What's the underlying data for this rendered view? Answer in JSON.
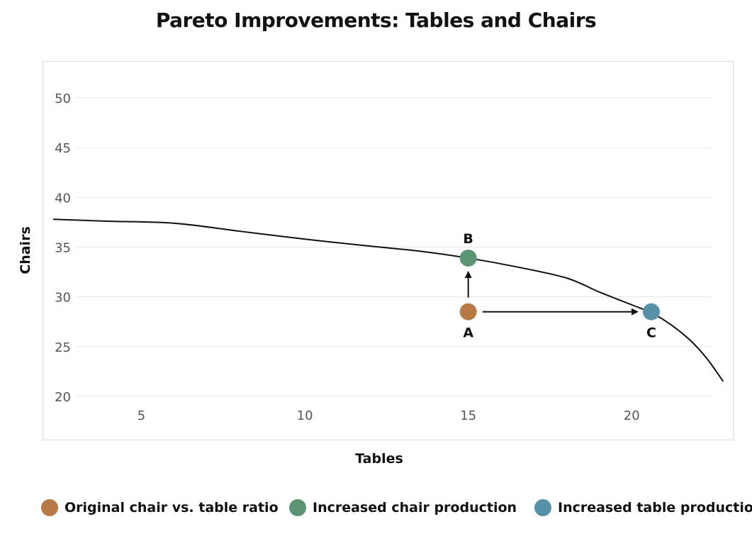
{
  "chart_data": {
    "type": "line",
    "title": "Pareto Improvements: Tables and Chairs",
    "xlabel": "Tables",
    "ylabel": "Chairs",
    "xlim": [
      2.3,
      22.9
    ],
    "ylim": [
      18.5,
      52
    ],
    "x_ticks": [
      5,
      10,
      15,
      20
    ],
    "y_ticks": [
      20,
      25,
      30,
      35,
      40,
      45,
      50
    ],
    "grid": "horizontal",
    "frontier": {
      "x": [
        2.3,
        4,
        6,
        8,
        10,
        12,
        13.5,
        15,
        16.5,
        18,
        19,
        20,
        20.6,
        21.2,
        21.8,
        22.3,
        22.8
      ],
      "y": [
        37.8,
        37.6,
        37.4,
        36.6,
        35.8,
        35.1,
        34.6,
        33.9,
        33.0,
        31.9,
        30.5,
        29.2,
        28.4,
        27.2,
        25.6,
        23.8,
        21.5
      ]
    },
    "points": [
      {
        "label": "A",
        "x": 15,
        "y": 28.5,
        "color": "#b87a45"
      },
      {
        "label": "B",
        "x": 15,
        "y": 33.9,
        "color": "#5a9473"
      },
      {
        "label": "C",
        "x": 20.6,
        "y": 28.5,
        "color": "#5691a8"
      }
    ],
    "arrows": [
      {
        "from": "A",
        "to": "B"
      },
      {
        "from": "A",
        "to": "C"
      }
    ],
    "legend": [
      {
        "label": "Original chair vs. table ratio",
        "color": "#b87a45"
      },
      {
        "label": "Increased chair production",
        "color": "#5a9473"
      },
      {
        "label": "Increased table production",
        "color": "#5691a8"
      }
    ],
    "legend_position": "bottom"
  }
}
